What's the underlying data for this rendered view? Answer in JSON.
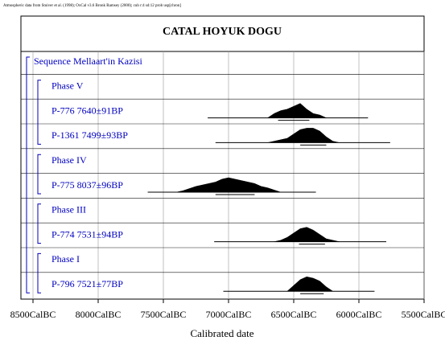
{
  "chart_data": {
    "type": "oxcal",
    "note": "Atmospheric data from Stuiver et al. (1998); OxCal v3.6 Bronk Ramsey (2000); cub r:4 sd:12 prob usp[chron]",
    "title": "CATAL HOYUK DOGU",
    "xlabel": "Calibrated date",
    "xlim": [
      8500,
      5500
    ],
    "xticks": [
      {
        "value": 8500,
        "label": "8500CalBC"
      },
      {
        "value": 8000,
        "label": "8000CalBC"
      },
      {
        "value": 7500,
        "label": "7500CalBC"
      },
      {
        "value": 7000,
        "label": "7000CalBC"
      },
      {
        "value": 6500,
        "label": "6500CalBC"
      },
      {
        "value": 6000,
        "label": "6000CalBC"
      },
      {
        "value": 5500,
        "label": "5500CalBC"
      }
    ],
    "grid": true,
    "label_color": "#0000c0",
    "density_color": "#000000",
    "rows": [
      {
        "label": "Sequence Mellaart'in Kazisi",
        "level": "sequence"
      },
      {
        "label": "Phase V",
        "level": "phase"
      },
      {
        "label": "P-776  7640±91BP",
        "level": "sample",
        "range": [
          7160,
          5930
        ],
        "range_1sigma": [
          6620,
          6380
        ],
        "density_x": [
          6700,
          6650,
          6600,
          6550,
          6500,
          6450,
          6400,
          6350,
          6300,
          6250
        ],
        "density": [
          0,
          0.3,
          0.5,
          0.6,
          0.8,
          1,
          0.6,
          0.3,
          0.2,
          0
        ]
      },
      {
        "label": "P-1361  7499±93BP",
        "level": "sample",
        "range": [
          7100,
          5760
        ],
        "range_1sigma": [
          6450,
          6250
        ],
        "density_x": [
          6700,
          6650,
          6600,
          6550,
          6500,
          6450,
          6400,
          6350,
          6300,
          6250,
          6200,
          6150
        ],
        "density": [
          0,
          0.1,
          0.2,
          0.3,
          0.6,
          0.9,
          1,
          1,
          0.8,
          0.4,
          0.1,
          0
        ]
      },
      {
        "label": "Phase IV",
        "level": "phase"
      },
      {
        "label": "P-775  8037±96BP",
        "level": "sample",
        "range": [
          7620,
          6330
        ],
        "range_1sigma": [
          7100,
          6800
        ],
        "density_x": [
          7400,
          7350,
          7300,
          7250,
          7200,
          7150,
          7100,
          7050,
          7000,
          6950,
          6900,
          6850,
          6800,
          6750,
          6700,
          6650,
          6600
        ],
        "density": [
          0,
          0.1,
          0.25,
          0.4,
          0.5,
          0.6,
          0.7,
          0.9,
          1,
          0.9,
          0.8,
          0.7,
          0.6,
          0.4,
          0.3,
          0.15,
          0
        ]
      },
      {
        "label": "Phase III",
        "level": "phase"
      },
      {
        "label": "P-774  7531±94BP",
        "level": "sample",
        "range": [
          7110,
          5790
        ],
        "range_1sigma": [
          6460,
          6260
        ],
        "density_x": [
          6650,
          6600,
          6550,
          6500,
          6450,
          6400,
          6350,
          6300,
          6250,
          6200,
          6150
        ],
        "density": [
          0,
          0.1,
          0.3,
          0.6,
          0.9,
          1,
          0.8,
          0.5,
          0.2,
          0.1,
          0
        ]
      },
      {
        "label": "Phase I",
        "level": "phase"
      },
      {
        "label": "P-796  7521±77BP",
        "level": "sample",
        "range": [
          7040,
          5880
        ],
        "range_1sigma": [
          6450,
          6270
        ],
        "density_x": [
          6550,
          6500,
          6450,
          6400,
          6350,
          6300,
          6250,
          6200
        ],
        "density": [
          0,
          0.4,
          0.8,
          1,
          0.9,
          0.7,
          0.3,
          0
        ]
      }
    ]
  }
}
